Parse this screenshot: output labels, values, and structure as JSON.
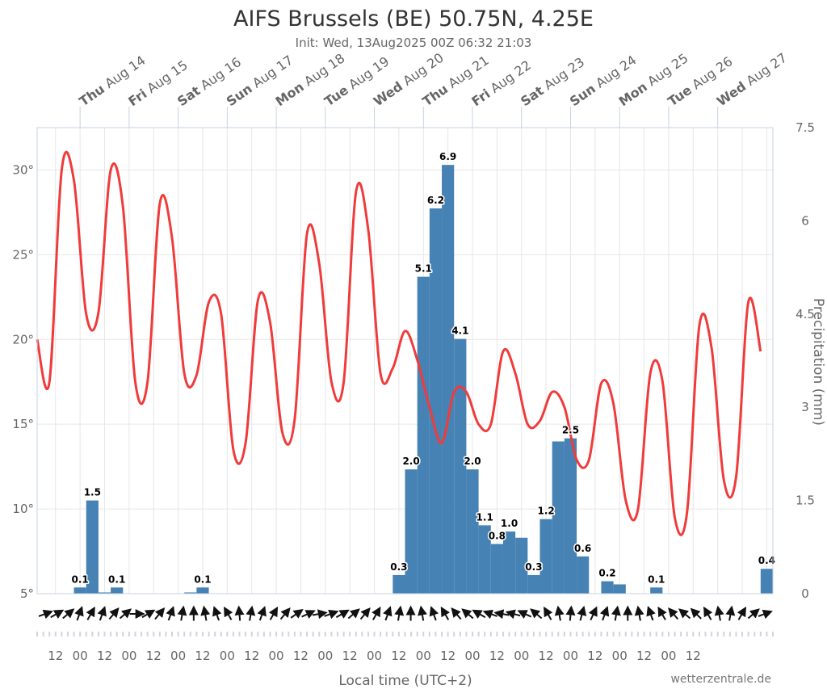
{
  "chart_data": {
    "type": "bar+line",
    "title": "AIFS Brussels (BE) 50.75N, 4.25E",
    "subtitle": "Init: Wed, 13Aug2025 00Z 06:32 21:03",
    "xlabel": "Local time (UTC+2)",
    "credit": "wetterzentrale.de",
    "grid": true,
    "legend": "none",
    "x_day_labels": [
      {
        "dow": "Thu",
        "date": "Aug 14"
      },
      {
        "dow": "Fri",
        "date": "Aug 15"
      },
      {
        "dow": "Sat",
        "date": "Aug 16"
      },
      {
        "dow": "Sun",
        "date": "Aug 17"
      },
      {
        "dow": "Mon",
        "date": "Aug 18"
      },
      {
        "dow": "Tue",
        "date": "Aug 19"
      },
      {
        "dow": "Wed",
        "date": "Aug 20"
      },
      {
        "dow": "Thu",
        "date": "Aug 21"
      },
      {
        "dow": "Fri",
        "date": "Aug 22"
      },
      {
        "dow": "Sat",
        "date": "Aug 23"
      },
      {
        "dow": "Sun",
        "date": "Aug 24"
      },
      {
        "dow": "Mon",
        "date": "Aug 25"
      },
      {
        "dow": "Tue",
        "date": "Aug 26"
      },
      {
        "dow": "Wed",
        "date": "Aug 27"
      }
    ],
    "x_tick_labels": [
      "12",
      "00",
      "12",
      "00",
      "12",
      "00",
      "12",
      "00",
      "12",
      "00",
      "12",
      "00",
      "12",
      "00",
      "12",
      "00",
      "12",
      "00",
      "12",
      "00",
      "12",
      "00",
      "12",
      "00",
      "12",
      "00",
      "12"
    ],
    "x_range_hours": [
      -21,
      339
    ],
    "y_left": {
      "label": "",
      "range": [
        5,
        32.5
      ],
      "ticks": [
        5,
        10,
        15,
        20,
        25,
        30
      ],
      "tick_labels": [
        "5°",
        "10°",
        "15°",
        "20°",
        "25°",
        "30°"
      ]
    },
    "y_right": {
      "label": "Precipitation (mm)",
      "range": [
        0,
        7.5
      ],
      "ticks": [
        0,
        1.5,
        3,
        4.5,
        6,
        7.5
      ],
      "tick_labels": [
        "0",
        "1.5",
        "3",
        "4.5",
        "6",
        "7.5"
      ]
    },
    "series": [
      {
        "name": "Temperature",
        "type": "line",
        "unit": "°C",
        "color": "#f03b3b",
        "points": [
          [
            -21,
            20.0
          ],
          [
            -15,
            17.5
          ],
          [
            -9,
            30.0
          ],
          [
            -3,
            29.4
          ],
          [
            3,
            21.5
          ],
          [
            9,
            21.6
          ],
          [
            15,
            30.0
          ],
          [
            21,
            27.8
          ],
          [
            27,
            17.5
          ],
          [
            33,
            17.5
          ],
          [
            39,
            28.0
          ],
          [
            45,
            26.0
          ],
          [
            51,
            18.0
          ],
          [
            57,
            17.9
          ],
          [
            63,
            22.2
          ],
          [
            69,
            21.5
          ],
          [
            75,
            13.5
          ],
          [
            81,
            13.9
          ],
          [
            87,
            22.3
          ],
          [
            93,
            21.0
          ],
          [
            99,
            14.5
          ],
          [
            105,
            15.3
          ],
          [
            111,
            26.2
          ],
          [
            117,
            24.5
          ],
          [
            123,
            17.5
          ],
          [
            129,
            17.5
          ],
          [
            135,
            28.7
          ],
          [
            141,
            26.5
          ],
          [
            147,
            18.0
          ],
          [
            153,
            18.3
          ],
          [
            159,
            20.5
          ],
          [
            165,
            18.8
          ],
          [
            171,
            16.0
          ],
          [
            177,
            13.9
          ],
          [
            183,
            16.9
          ],
          [
            189,
            16.9
          ],
          [
            195,
            15.0
          ],
          [
            201,
            15.0
          ],
          [
            207,
            19.3
          ],
          [
            213,
            18.0
          ],
          [
            219,
            15.0
          ],
          [
            225,
            15.2
          ],
          [
            231,
            16.9
          ],
          [
            237,
            16.0
          ],
          [
            243,
            12.9
          ],
          [
            249,
            12.9
          ],
          [
            255,
            17.4
          ],
          [
            261,
            16.2
          ],
          [
            267,
            10.5
          ],
          [
            273,
            10.0
          ],
          [
            279,
            18.0
          ],
          [
            285,
            17.5
          ],
          [
            291,
            9.5
          ],
          [
            297,
            9.8
          ],
          [
            303,
            20.8
          ],
          [
            309,
            19.5
          ],
          [
            315,
            11.7
          ],
          [
            321,
            11.9
          ],
          [
            327,
            22.2
          ],
          [
            333,
            19.3
          ]
        ]
      },
      {
        "name": "Precipitation",
        "type": "bar",
        "unit": "mm",
        "color": "#4682b4",
        "bars": [
          {
            "t": 0,
            "value": 0.1,
            "label": "0.1"
          },
          {
            "t": 6,
            "value": 1.5,
            "label": "1.5"
          },
          {
            "t": 12,
            "value": 0.02,
            "label": ""
          },
          {
            "t": 18,
            "value": 0.1,
            "label": "0.1"
          },
          {
            "t": 54,
            "value": 0.02,
            "label": ""
          },
          {
            "t": 60,
            "value": 0.1,
            "label": "0.1"
          },
          {
            "t": 156,
            "value": 0.3,
            "label": "0.3"
          },
          {
            "t": 162,
            "value": 2.0,
            "label": "2.0"
          },
          {
            "t": 168,
            "value": 5.1,
            "label": "5.1"
          },
          {
            "t": 174,
            "value": 6.2,
            "label": "6.2"
          },
          {
            "t": 180,
            "value": 6.9,
            "label": "6.9"
          },
          {
            "t": 186,
            "value": 4.1,
            "label": "4.1"
          },
          {
            "t": 192,
            "value": 2.0,
            "label": "2.0"
          },
          {
            "t": 198,
            "value": 1.1,
            "label": "1.1"
          },
          {
            "t": 204,
            "value": 0.8,
            "label": "0.8"
          },
          {
            "t": 210,
            "value": 1.0,
            "label": "1.0"
          },
          {
            "t": 216,
            "value": 0.9,
            "label": ""
          },
          {
            "t": 222,
            "value": 0.3,
            "label": "0.3"
          },
          {
            "t": 228,
            "value": 1.2,
            "label": "1.2"
          },
          {
            "t": 234,
            "value": 2.45,
            "label": ""
          },
          {
            "t": 240,
            "value": 2.5,
            "label": "2.5"
          },
          {
            "t": 246,
            "value": 0.6,
            "label": "0.6"
          },
          {
            "t": 258,
            "value": 0.2,
            "label": "0.2"
          },
          {
            "t": 264,
            "value": 0.15,
            "label": ""
          },
          {
            "t": 282,
            "value": 0.1,
            "label": "0.1"
          },
          {
            "t": 336,
            "value": 0.4,
            "label": "0.4"
          }
        ]
      },
      {
        "name": "Wind direction",
        "type": "arrows",
        "unit": "deg",
        "directions": [
          250,
          240,
          230,
          200,
          210,
          200,
          220,
          230,
          270,
          240,
          220,
          200,
          190,
          180,
          170,
          160,
          150,
          175,
          190,
          200,
          210,
          220,
          235,
          245,
          260,
          250,
          240,
          230,
          220,
          210,
          200,
          190,
          180,
          170,
          160,
          150,
          140,
          130,
          120,
          110,
          100,
          105,
          115,
          130,
          150,
          170,
          185,
          195,
          205,
          200,
          190,
          180,
          170,
          160,
          150,
          140,
          130,
          135,
          150,
          170,
          190,
          210,
          230,
          250
        ]
      }
    ]
  }
}
